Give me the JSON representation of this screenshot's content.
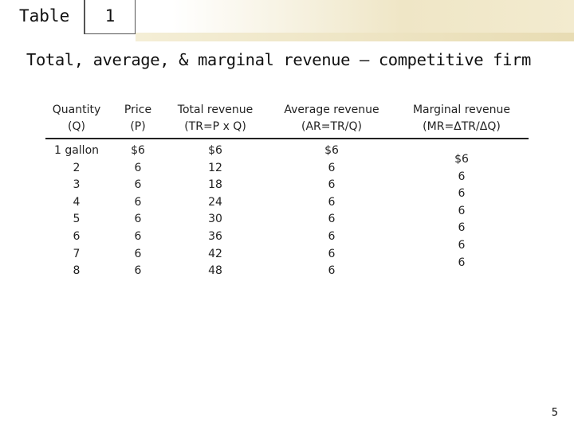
{
  "slide": {
    "label": "Table",
    "number": "1",
    "title": "Total, average, & marginal revenue – competitive firm",
    "page_number": "5"
  },
  "table": {
    "headers": [
      {
        "line1": "Quantity",
        "line2": "(Q)"
      },
      {
        "line1": "Price",
        "line2": "(P)"
      },
      {
        "line1": "Total revenue",
        "line2": "(TR=P x Q)"
      },
      {
        "line1": "Average revenue",
        "line2": "(AR=TR/Q)"
      },
      {
        "line1": "Marginal revenue",
        "line2": "(MR=ΔTR/ΔQ)"
      }
    ],
    "quantity": [
      "1 gallon",
      "2",
      "3",
      "4",
      "5",
      "6",
      "7",
      "8"
    ],
    "price": [
      "$6",
      "6",
      "6",
      "6",
      "6",
      "6",
      "6",
      "6"
    ],
    "total_revenue": [
      "$6",
      "12",
      "18",
      "24",
      "30",
      "36",
      "42",
      "48"
    ],
    "average_revenue": [
      "$6",
      "6",
      "6",
      "6",
      "6",
      "6",
      "6",
      "6"
    ],
    "marginal_revenue": [
      "$6",
      "6",
      "6",
      "6",
      "6",
      "6",
      "6"
    ]
  }
}
